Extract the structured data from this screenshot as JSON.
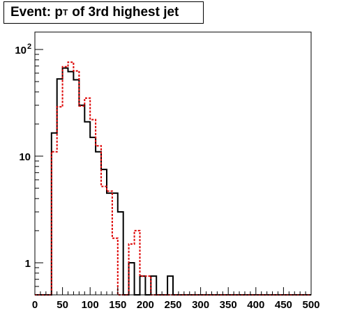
{
  "chart_data": {
    "type": "histogram",
    "title": {
      "prefix": "Event: p",
      "subscript": "T",
      "suffix": "of 3rd highest jet"
    },
    "xlabel": "",
    "ylabel": "",
    "xlim": [
      0,
      500
    ],
    "ylim": [
      0.5,
      150
    ],
    "y_scale": "log",
    "grid": false,
    "legend": "none",
    "x_ticks": [
      "0",
      "50",
      "100",
      "150",
      "200",
      "250",
      "300",
      "350",
      "400",
      "450",
      "500"
    ],
    "y_ticks": [
      {
        "value": 1,
        "label": "1"
      },
      {
        "value": 10,
        "label": "10"
      },
      {
        "value": 100,
        "label": "10",
        "exponent": "2"
      }
    ],
    "bin_width": 10,
    "x_min": 0,
    "series": [
      {
        "color": "#000000",
        "style": "solid",
        "values": [
          0,
          0,
          0,
          16.5,
          53,
          67,
          62,
          52,
          30,
          21,
          15,
          11,
          7.5,
          4.5,
          4.5,
          3,
          0,
          1,
          0,
          0.75,
          0,
          0.75,
          0,
          0,
          0.75,
          0,
          0,
          0,
          0,
          0,
          0,
          0,
          0,
          0,
          0,
          0,
          0,
          0,
          0,
          0,
          0,
          0,
          0,
          0,
          0,
          0,
          0,
          0,
          0,
          0
        ]
      },
      {
        "color": "#dd0000",
        "style": "dotted",
        "values": [
          0,
          0,
          0,
          11,
          29,
          69,
          76,
          63,
          29.5,
          35,
          22,
          12.5,
          5.2,
          4.7,
          1.7,
          0,
          0,
          1.5,
          2,
          0.75,
          0.75,
          0,
          0,
          0,
          0,
          0,
          0,
          0,
          0,
          0,
          0,
          0,
          0,
          0,
          0,
          0,
          0,
          0,
          0,
          0,
          0,
          0,
          0,
          0,
          0,
          0,
          0,
          0,
          0,
          0
        ]
      }
    ]
  }
}
